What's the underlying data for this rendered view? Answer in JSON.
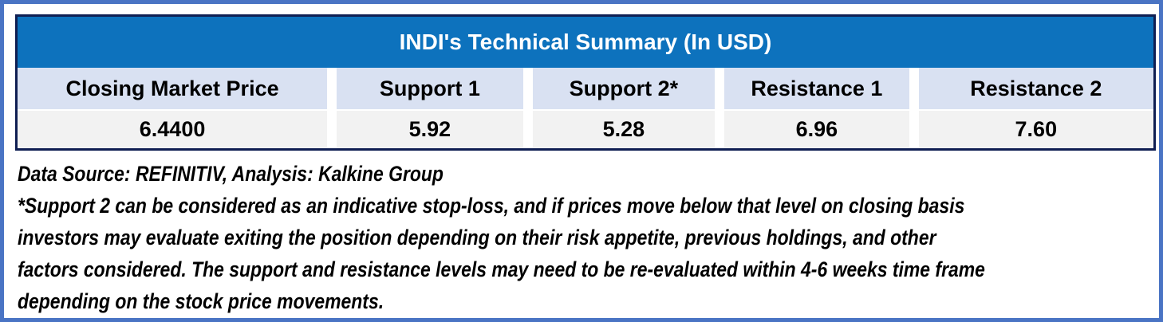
{
  "table": {
    "title": "INDI's Technical Summary (In USD)",
    "columns": [
      "Closing Market Price",
      "Support 1",
      "Support 2*",
      "Resistance 1",
      "Resistance 2"
    ],
    "values": [
      "6.4400",
      "5.92",
      "5.28",
      "6.96",
      "7.60"
    ]
  },
  "notes": {
    "source_line": "Data Source: REFINITIV, Analysis: Kalkine Group",
    "disclaimer_lines": [
      "*Support 2 can be considered as an indicative stop-loss, and if prices move below that level on closing basis",
      "investors may evaluate exiting the position depending on their risk appetite, previous holdings, and other",
      "factors considered. The support and resistance levels may need to be re-evaluated within 4-6 weeks time frame",
      "depending on the stock price movements."
    ]
  },
  "colors": {
    "title_bg": "#0d72bd",
    "title_text": "#ffffff",
    "header_row_bg": "#d9e1f2",
    "value_row_bg": "#f2f2f2",
    "outer_frame": "#4a74c4",
    "table_border": "#0f1e52",
    "text": "#000000"
  },
  "chart_data": {
    "type": "table",
    "title": "INDI's Technical Summary (In USD)",
    "columns": [
      "Closing Market Price",
      "Support 1",
      "Support 2*",
      "Resistance 1",
      "Resistance 2"
    ],
    "rows": [
      [
        6.44,
        5.92,
        5.28,
        6.96,
        7.6
      ]
    ],
    "row_value_labels": [
      [
        "6.4400",
        "5.92",
        "5.28",
        "6.96",
        "7.60"
      ]
    ],
    "currency": "USD",
    "source": "Data Source: REFINITIV, Analysis: Kalkine Group",
    "footnote": "*Support 2 can be considered as an indicative stop-loss, and if prices move below that level on closing basis investors may evaluate exiting the position depending on their risk appetite, previous holdings, and other factors considered. The support and resistance levels may need to be re-evaluated within 4-6 weeks time frame depending on the stock price movements."
  }
}
